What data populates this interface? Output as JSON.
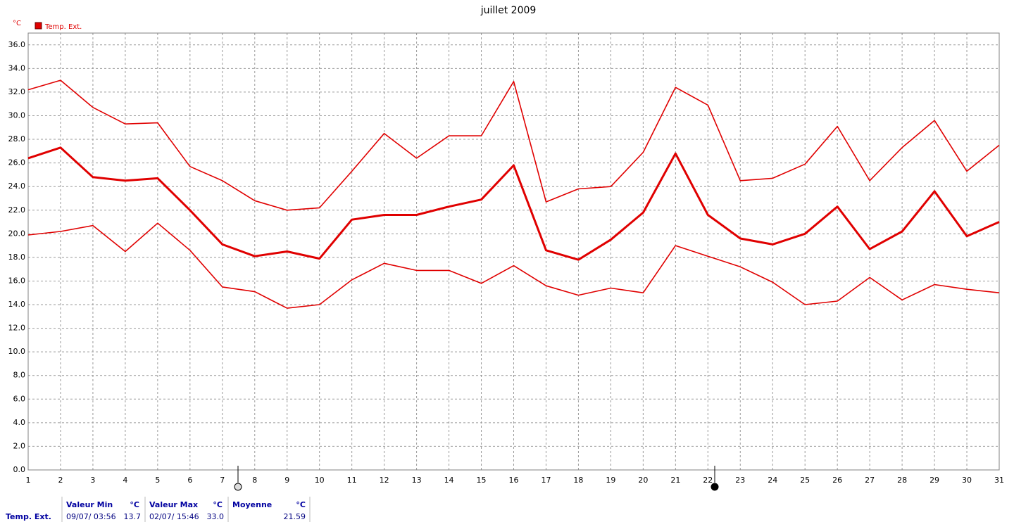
{
  "chart_data": {
    "type": "line",
    "title": "juillet 2009",
    "y_unit": "°C",
    "x": [
      1,
      2,
      3,
      4,
      5,
      6,
      7,
      8,
      9,
      10,
      11,
      12,
      13,
      14,
      15,
      16,
      17,
      18,
      19,
      20,
      21,
      22,
      23,
      24,
      25,
      26,
      27,
      28,
      29,
      30,
      31
    ],
    "xlim": [
      1,
      31
    ],
    "xticks": [
      1,
      2,
      3,
      4,
      5,
      6,
      7,
      8,
      9,
      10,
      11,
      12,
      13,
      14,
      15,
      16,
      17,
      18,
      19,
      20,
      21,
      22,
      23,
      24,
      25,
      26,
      27,
      28,
      29,
      30,
      31
    ],
    "ylim": [
      0,
      37
    ],
    "yticks": [
      {
        "value": 0,
        "label": "0.0"
      },
      {
        "value": 2,
        "label": "2.0"
      },
      {
        "value": 4,
        "label": "4.0"
      },
      {
        "value": 6,
        "label": "6.0"
      },
      {
        "value": 8,
        "label": "8.0"
      },
      {
        "value": 10,
        "label": "10.0"
      },
      {
        "value": 12,
        "label": "12.0"
      },
      {
        "value": 14,
        "label": "14.0"
      },
      {
        "value": 16,
        "label": "16.0"
      },
      {
        "value": 18,
        "label": "18.0"
      },
      {
        "value": 20,
        "label": "20.0"
      },
      {
        "value": 22,
        "label": "22.0"
      },
      {
        "value": 24,
        "label": "24.0"
      },
      {
        "value": 26,
        "label": "26.0"
      },
      {
        "value": 28,
        "label": "28.0"
      },
      {
        "value": 30,
        "label": "30.0"
      },
      {
        "value": 32,
        "label": "32.0"
      },
      {
        "value": 34,
        "label": "34.0"
      },
      {
        "value": 36,
        "label": "36.0"
      }
    ],
    "grid": true,
    "series": [
      {
        "color": "#e00000",
        "values": [
          32.2,
          33.0,
          30.7,
          29.3,
          29.4,
          25.7,
          24.5,
          22.8,
          22.0,
          22.2,
          25.3,
          28.5,
          26.4,
          28.3,
          28.3,
          32.9,
          22.7,
          23.8,
          24.0,
          26.9,
          32.4,
          30.9,
          24.5,
          24.7,
          25.9,
          29.1,
          24.5,
          27.3,
          29.6,
          25.3,
          27.5
        ]
      },
      {
        "name": "Temp. Ext.",
        "color": "#e00000",
        "values": [
          26.4,
          27.3,
          24.8,
          24.5,
          24.7,
          22.0,
          19.1,
          18.1,
          18.5,
          17.9,
          21.2,
          21.6,
          21.6,
          22.3,
          22.9,
          25.8,
          18.6,
          17.8,
          19.5,
          21.8,
          26.8,
          21.6,
          19.6,
          19.1,
          20.0,
          22.3,
          18.7,
          20.2,
          23.6,
          19.8,
          21.0
        ]
      },
      {
        "color": "#e00000",
        "values": [
          19.9,
          20.2,
          20.7,
          18.5,
          20.9,
          18.6,
          15.5,
          15.1,
          13.7,
          14.0,
          16.1,
          17.5,
          16.9,
          16.9,
          15.8,
          17.3,
          15.6,
          14.8,
          15.4,
          15.0,
          19.0,
          18.1,
          17.2,
          15.9,
          14.0,
          14.3,
          16.3,
          14.4,
          15.7,
          15.3,
          15.0
        ]
      }
    ]
  },
  "summary": {
    "row_label": "Temp. Ext.",
    "min": {
      "header": "Valeur Min",
      "unit": "°C",
      "date": "09/07/ 03:56",
      "value": "13.7"
    },
    "max": {
      "header": "Valeur Max",
      "unit": "°C",
      "date": "02/07/ 15:46",
      "value": "33.0"
    },
    "mean": {
      "header": "Moyenne",
      "unit": "°C",
      "value": "21.59"
    }
  }
}
